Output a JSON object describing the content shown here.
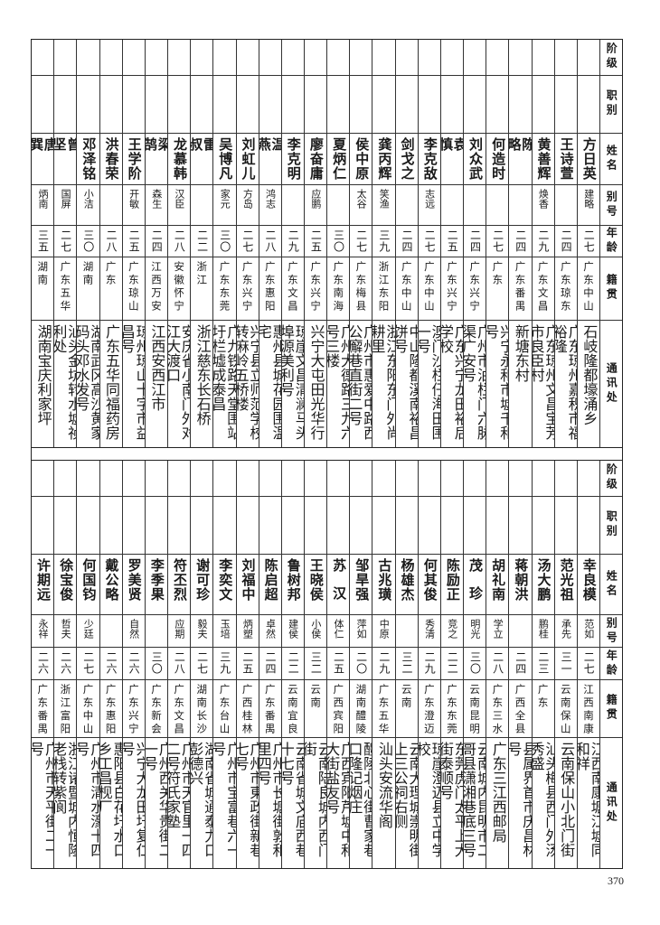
{
  "headers": [
    "阶级",
    "职别",
    "姓名",
    "别号",
    "年龄",
    "籍贯",
    "通讯处"
  ],
  "top_table": [
    {
      "name": "方日英",
      "alias": "建略",
      "age": "二七",
      "native": "广东中山",
      "address": "石岐隆都壕涌乡"
    },
    {
      "name": "王诗萱",
      "alias": "",
      "age": "二四",
      "native": "广东琼东",
      "address": "广东琼州嘉积市福裕隆"
    },
    {
      "name": "黄善辉",
      "alias": "焕香",
      "age": "二九",
      "native": "广东文昌",
      "address": "广东琼州文昌宝芳市良臣村"
    },
    {
      "name": "陈略",
      "alias": "",
      "age": "二四",
      "native": "广东番禺",
      "address": "新塘东村"
    },
    {
      "name": "何造时",
      "alias": "",
      "age": "二七",
      "native": "广东",
      "address": "兴宁永和市墟千和号"
    },
    {
      "name": "刘众武",
      "alias": "",
      "age": "二四",
      "native": "广东兴宁",
      "address": "广州市油栏门六脉渠广安号"
    },
    {
      "name": "袁慎",
      "alias": "",
      "age": "二五",
      "native": "广东兴宁",
      "address": "广东兴宁龙田裕后学校"
    },
    {
      "name": "李克敌",
      "alias": "志远",
      "age": "二七",
      "native": "广东中山",
      "address": "澳门沙栏仔海田围一号"
    },
    {
      "name": "剑戈之",
      "alias": "",
      "age": "二四",
      "native": "广东中山",
      "address": "中山隆都溪南裕昌饼号"
    },
    {
      "name": "龚丙辉",
      "alias": "笑渔",
      "age": "三九",
      "native": "浙江东阳",
      "address": "浙江东阳东门外尚耕里"
    },
    {
      "name": "侯中原",
      "alias": "太谷",
      "age": "二七",
      "native": "广东梅县",
      "address": "广州市惠爱中路西公廨巷直街二号"
    },
    {
      "name": "夏炳仁",
      "alias": "",
      "age": "三〇",
      "native": "广东南海",
      "address": "广州大德路三九六号三楼"
    },
    {
      "name": "廖奋庸",
      "alias": "应鹏",
      "age": "二五",
      "native": "广东兴宁",
      "address": "兴宁大屯田光华行"
    },
    {
      "name": "李克明",
      "alias": "",
      "age": "二九",
      "native": "广东文昌",
      "address": "琼崖文昌清澜马头埠源美利号"
    },
    {
      "name": "温燕",
      "alias": "鸿志",
      "age": "二八",
      "native": "广东惠阳",
      "address": "惠州县城花园围温宅"
    },
    {
      "name": "刘虹儿",
      "alias": "方岛",
      "age": "二七",
      "native": "广东兴宁",
      "address": "兴宁县立师范学校转麻岭五桥楼"
    },
    {
      "name": "吴博凡",
      "alias": "家元",
      "age": "三〇",
      "native": "广东东莞",
      "address": "广九铁路天堂围站圩栏墟成泰昌"
    },
    {
      "name": "雷叔",
      "alias": "",
      "age": "二二",
      "native": "浙江",
      "address": "浙江慈东长石桥"
    },
    {
      "name": "龙慕韩",
      "alias": "汉臣",
      "age": "二八",
      "native": "安徽怀宁",
      "address": "安庆省小南门外对江大渡口"
    },
    {
      "name": "梁鹄",
      "alias": "森生",
      "age": "二四",
      "native": "江西万安",
      "address": "江西安西江市"
    },
    {
      "name": "王学阶",
      "alias": "开敏",
      "age": "二五",
      "native": "广东琼山",
      "address": "琼州琼山十字市益昌号"
    },
    {
      "name": "洪春荣",
      "alias": "",
      "age": "二八",
      "native": "广东",
      "address": "广东五华同福药房"
    },
    {
      "name": "邓泽铭",
      "alias": "小洁",
      "age": "三〇",
      "native": "湖南",
      "address": "湖南武冈高沙黄家码头邓水发号"
    },
    {
      "name": "曾坚",
      "alias": "国屏",
      "age": "二七",
      "native": "广东五华",
      "address": "汕头金坑转水墟祯利处"
    },
    {
      "name": "唐巽",
      "alias": "炳南",
      "age": "三五",
      "native": "湖南",
      "address": "湖南宝庆利家坪"
    }
  ],
  "bottom_table": [
    {
      "name": "幸良模",
      "alias": "范如",
      "age": "二七",
      "native": "江西南康",
      "address": "江西南康塘江墟同和祥"
    },
    {
      "name": "范光祖",
      "alias": "承先",
      "age": "三一",
      "native": "云南保山",
      "address": "云南保山小北门街"
    },
    {
      "name": "汤大鹏",
      "alias": "鹏桂",
      "age": "二三",
      "native": "广东",
      "address": "汕头梅县西门外汤秀盛"
    },
    {
      "name": "蒋朝洪",
      "alias": "",
      "age": "二四",
      "native": "广西全县",
      "address": "县属界首市庆昌林号"
    },
    {
      "name": "胡礼南",
      "alias": "学立",
      "age": "二八",
      "native": "广东三水",
      "address": "广东三江西邮局"
    },
    {
      "name": "茂珍",
      "alias": "明光",
      "age": "三〇",
      "native": "云南昆明",
      "address": "云南城内昆明市二哥县潇湘巷底三号"
    },
    {
      "name": "陈励正",
      "alias": "竞之",
      "age": "二二",
      "native": "广东东莞",
      "address": "东莞虎门太平上大街泰顺号"
    },
    {
      "name": "何其俊",
      "alias": "秀清",
      "age": "二九",
      "native": "广东澄迈",
      "address": "琼崖澄迈县立中学校"
    },
    {
      "name": "杨雄杰",
      "alias": "",
      "age": "三二",
      "native": "云南",
      "address": "云南大理城崇明街上三公祠右侧"
    },
    {
      "name": "古兆璜",
      "alias": "中原",
      "age": "二九",
      "native": "广东五华",
      "address": "汕头安流华阁"
    },
    {
      "name": "邹旱强",
      "alias": "萍如",
      "age": "二〇",
      "native": "湖南醴陵",
      "address": "醴陵北心街曹家巷口隆记烟庄"
    },
    {
      "name": "苏汉",
      "alias": "体仁",
      "age": "二五",
      "native": "广西宾阳",
      "address": "广西宾阳芦墟中和大街盐友号"
    },
    {
      "name": "王晓侯",
      "alias": "小侯",
      "age": "三二",
      "native": "云南",
      "address": "云南陆良城内西门街"
    },
    {
      "name": "鲁树邦",
      "alias": "建侯",
      "age": "二二",
      "native": "云南宜良",
      "address": "云南省城文庙西巷十七号"
    },
    {
      "name": "陈启超",
      "alias": "卓然",
      "age": "二四",
      "native": "广东番禺",
      "address": "广州市长塘街敦和里四号"
    },
    {
      "name": "刘福中",
      "alias": "炳塑",
      "age": "二五",
      "native": "广西桂林",
      "address": "广州市東政街新巷七号"
    },
    {
      "name": "李奕文",
      "alias": "玉培",
      "age": "三九",
      "native": "广东台山",
      "address": "广州市宝富巷六一号"
    },
    {
      "name": "谢可珍",
      "alias": "毅夫",
      "age": "二七",
      "native": "湖南长沙",
      "address": "湖南省城通泰力口彭德兴"
    },
    {
      "name": "符丕烈",
      "alias": "应期",
      "age": "二八",
      "native": "广东文昌",
      "address": "广州市天官里一四二号符氏家塾"
    },
    {
      "name": "李季果",
      "alias": "",
      "age": "三〇",
      "native": "广东新会",
      "address": "广州西关华贵街二一号"
    },
    {
      "name": "罗美贤",
      "alias": "自然",
      "age": "二六",
      "native": "广东兴宁",
      "address": "兴宁大龙田圩复仁号"
    },
    {
      "name": "戴公略",
      "alias": "",
      "age": "二六",
      "native": "广东惠阳",
      "address": "惠阳县白花圩水口乡工昌枧厂"
    },
    {
      "name": "何国钧",
      "alias": "少廷",
      "age": "二七",
      "native": "广东中山",
      "address": "广州市清水濠十四号"
    },
    {
      "name": "徐宝俊",
      "alias": "哲夫",
      "age": "二六",
      "native": "浙江富阳",
      "address": "浙江诸暨城内恒隆老栈转紫阆"
    },
    {
      "name": "许期远",
      "alias": "永祥",
      "age": "二六",
      "native": "广东番禺",
      "address": "广州市天平街二一号"
    }
  ],
  "page_number": "370"
}
